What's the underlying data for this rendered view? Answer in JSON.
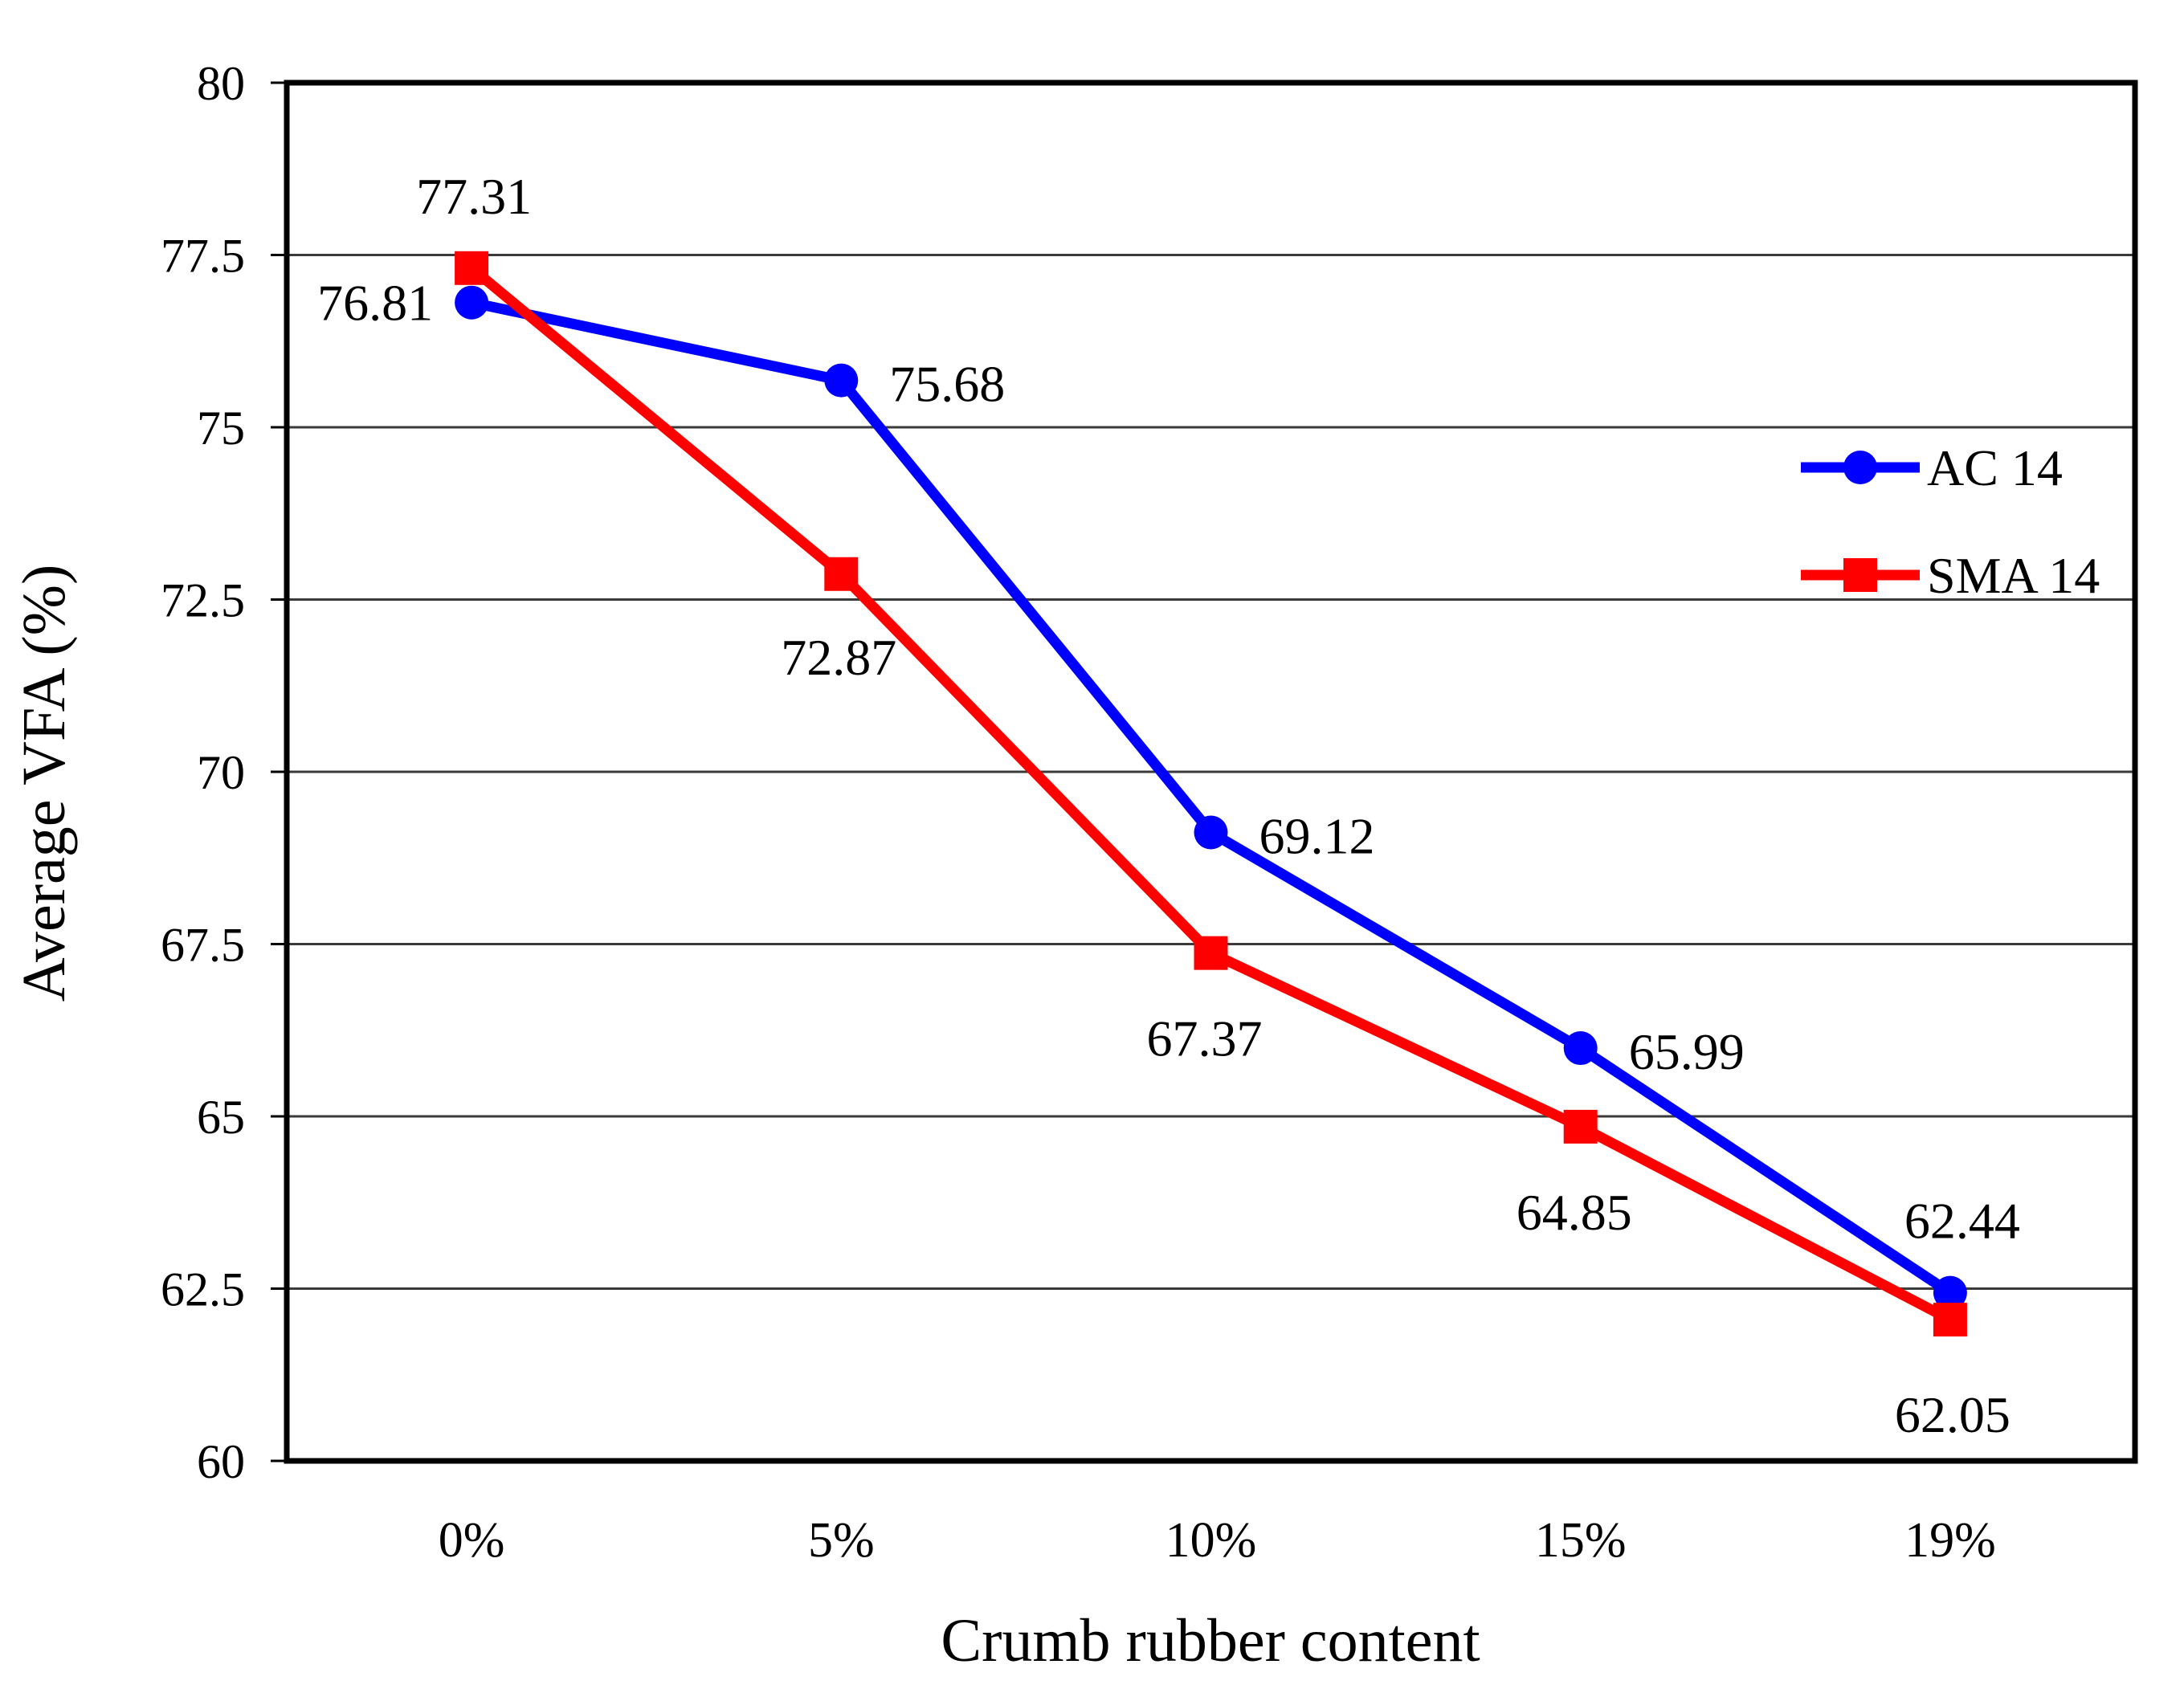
{
  "chart_data": {
    "type": "line",
    "title": "",
    "xlabel": "Crumb rubber content",
    "ylabel": "Average VFA (%)",
    "categories": [
      "0%",
      "5%",
      "10%",
      "15%",
      "19%"
    ],
    "ylim": [
      60,
      80
    ],
    "ytick_interval": 2.5,
    "ytick_labels": [
      "80",
      "77.5",
      "75",
      "72.5",
      "70",
      "67.5",
      "65",
      "62.5",
      "60"
    ],
    "grid": "horizontal-only",
    "legend": {
      "position": "inside-top-right",
      "entries": [
        "AC 14",
        "SMA 14"
      ]
    },
    "series": [
      {
        "name": "AC 14",
        "color": "#0000ff",
        "marker": "circle",
        "values": [
          76.81,
          75.68,
          69.12,
          65.99,
          62.44
        ],
        "data_labels": [
          "76.81",
          "75.68",
          "69.12",
          "65.99",
          "62.44"
        ],
        "label_placements": [
          "left",
          "right",
          "right",
          "right",
          "above"
        ]
      },
      {
        "name": "SMA 14",
        "color": "#ff0000",
        "marker": "square",
        "values": [
          77.31,
          72.87,
          67.37,
          64.85,
          62.05
        ],
        "data_labels": [
          "77.31",
          "72.87",
          "67.37",
          "64.85",
          "62.05"
        ],
        "label_placements": [
          "above",
          "below",
          "below",
          "below",
          "below"
        ]
      }
    ]
  },
  "colors": {
    "series_ac14": "#0000ff",
    "series_sma14": "#ff0000",
    "plot_border": "#000000",
    "gridline": "#3a3a3a",
    "text": "#000000",
    "background": "#ffffff"
  }
}
